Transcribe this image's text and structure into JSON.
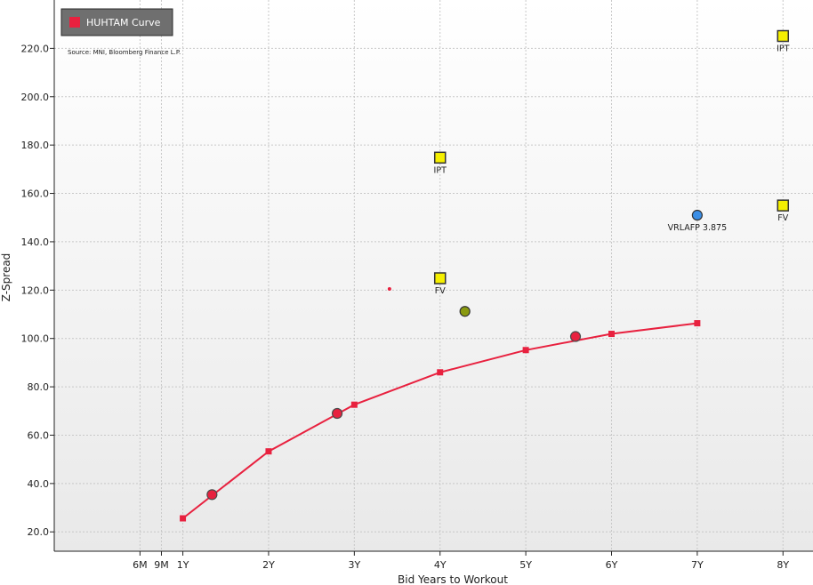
{
  "chart_data": {
    "type": "scatter",
    "xlabel": "Bid Years to Workout",
    "ylabel": "Z-Spread",
    "source": "Source: MNI, Bloomberg Finance L.P.",
    "xlim": [
      -0.5,
      8.35
    ],
    "ylim": [
      12,
      240
    ],
    "x_ticks": [
      {
        "x": 0.5,
        "label": "6M"
      },
      {
        "x": 0.75,
        "label": "9M"
      },
      {
        "x": 1,
        "label": "1Y"
      },
      {
        "x": 2,
        "label": "2Y"
      },
      {
        "x": 3,
        "label": "3Y"
      },
      {
        "x": 4,
        "label": "4Y"
      },
      {
        "x": 5,
        "label": "5Y"
      },
      {
        "x": 6,
        "label": "6Y"
      },
      {
        "x": 7,
        "label": "7Y"
      },
      {
        "x": 8,
        "label": "8Y"
      }
    ],
    "y_ticks": [
      20,
      40,
      60,
      80,
      100,
      120,
      140,
      160,
      180,
      200,
      220
    ],
    "y_tick_labels": [
      "20.0",
      "40.0",
      "60.0",
      "80.0",
      "100.0",
      "120.0",
      "140.0",
      "160.0",
      "180.0",
      "200.0",
      "220.0"
    ],
    "grid": true,
    "legend": {
      "label": "HUHTAM Curve",
      "color": "#e8213f",
      "position": "top-left"
    },
    "curve": {
      "name": "HUHTAM Curve",
      "color": "#e8213f",
      "x": [
        1.0,
        2.0,
        3.0,
        4.0,
        5.0,
        6.0,
        7.0
      ],
      "y": [
        25.6,
        53.3,
        72.6,
        86.0,
        95.2,
        101.9,
        106.3
      ]
    },
    "bonds": [
      {
        "x": 1.34,
        "y": 35.4
      },
      {
        "x": 2.8,
        "y": 69.0
      },
      {
        "x": 5.58,
        "y": 100.8
      }
    ],
    "small_point": {
      "x": 3.41,
      "y": 120.5
    },
    "markers": [
      {
        "kind": "square",
        "x": 4.0,
        "y": 174.8,
        "label": "IPT",
        "color": "#f5ef00"
      },
      {
        "kind": "square",
        "x": 4.0,
        "y": 124.9,
        "label": "FV",
        "color": "#f5ef00"
      },
      {
        "kind": "square",
        "x": 8.0,
        "y": 225.1,
        "label": "IPT",
        "color": "#f5ef00"
      },
      {
        "kind": "square",
        "x": 8.0,
        "y": 155.0,
        "label": "FV",
        "color": "#f5ef00"
      },
      {
        "kind": "circle",
        "x": 7.0,
        "y": 151.0,
        "label": "VRLAFP 3.875",
        "color": "#3a8ee6"
      },
      {
        "kind": "circle",
        "x": 4.29,
        "y": 111.2,
        "label": "",
        "color": "#8a9a10"
      }
    ]
  }
}
